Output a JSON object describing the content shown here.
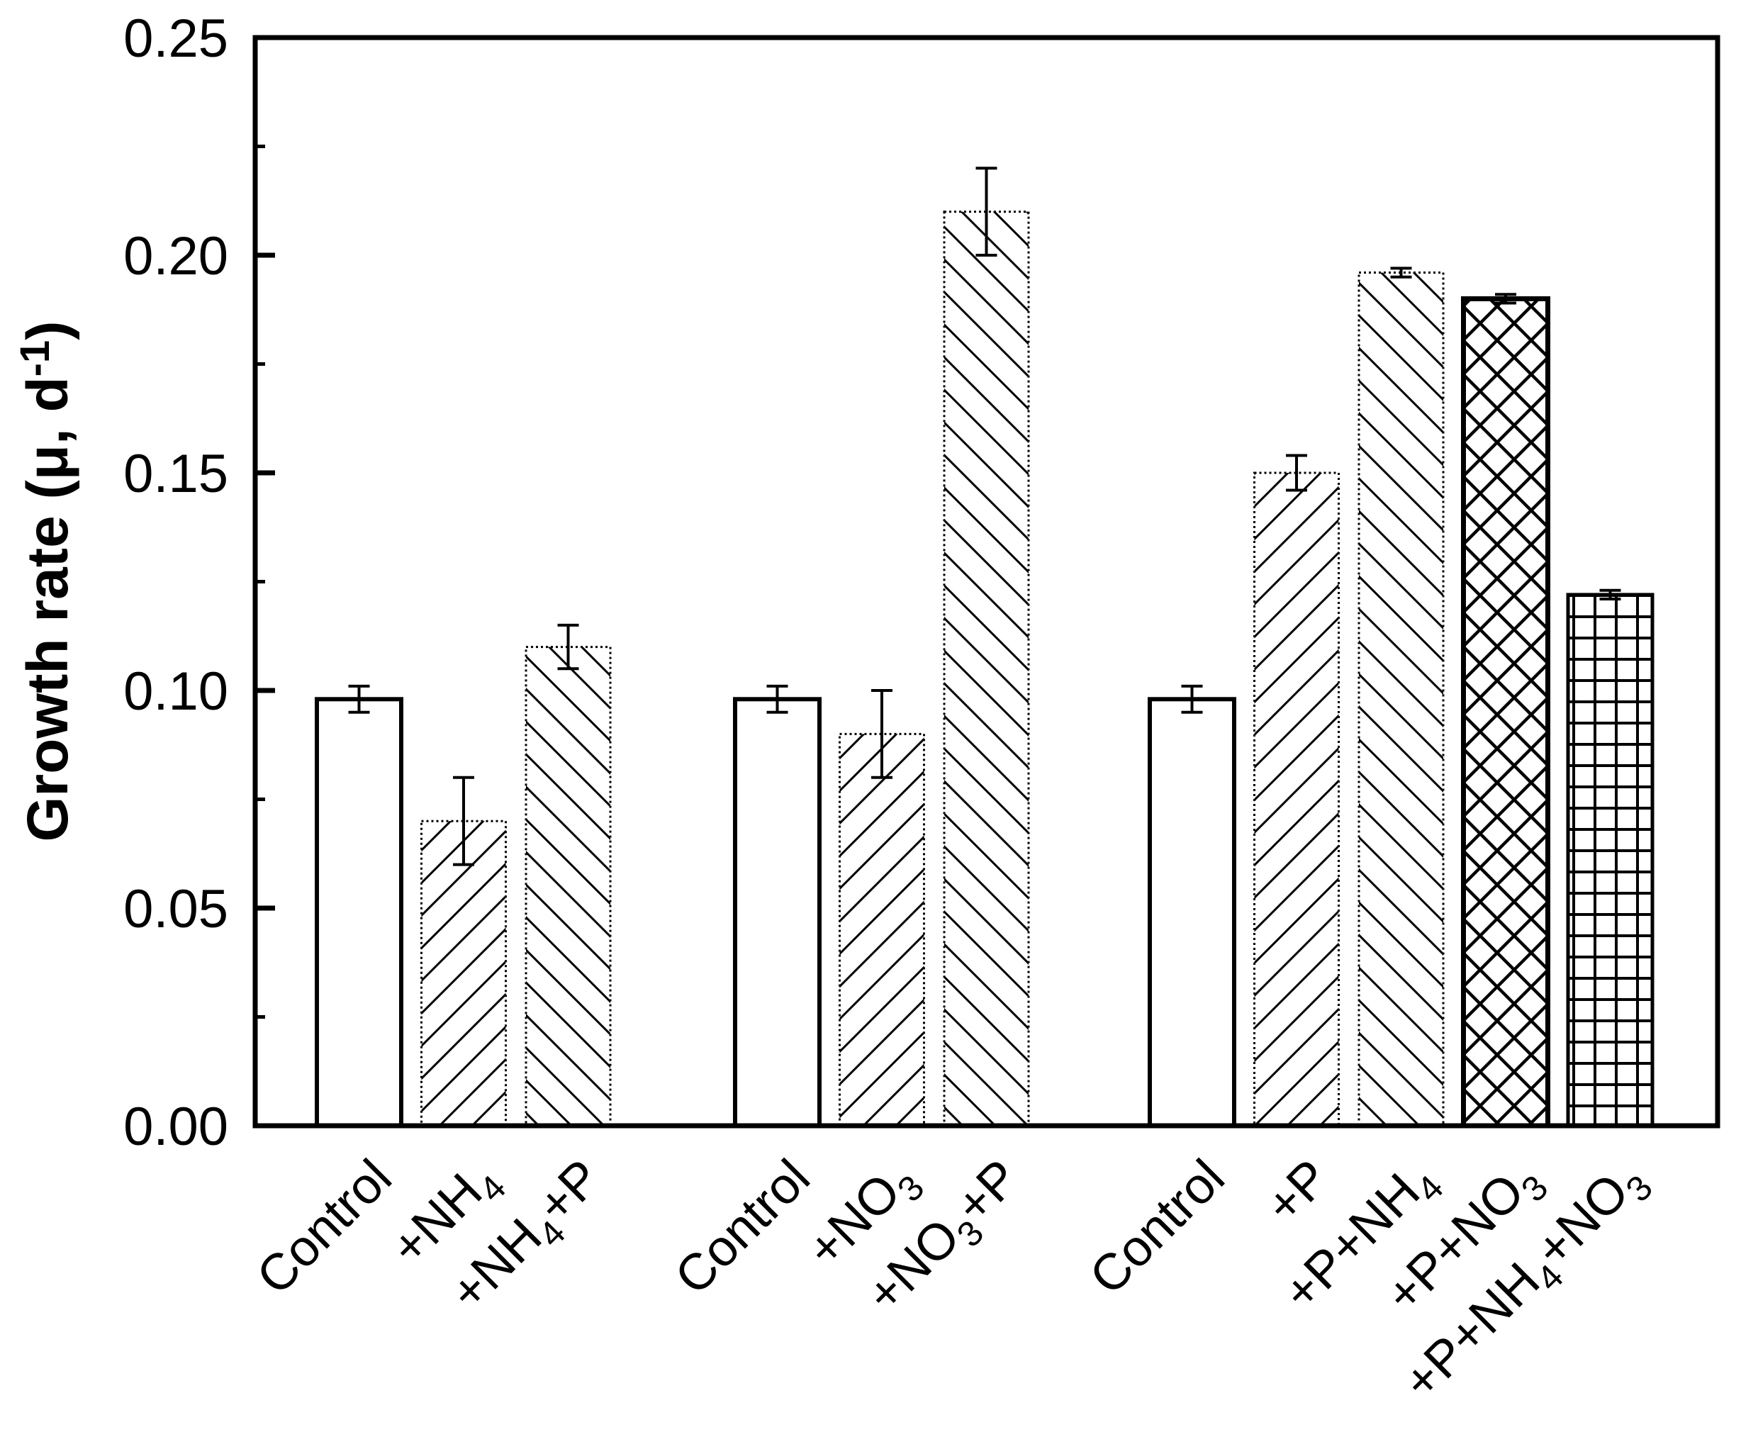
{
  "figure": {
    "background_color": "#ffffff",
    "ink_color": "#000000"
  },
  "y_axis": {
    "title": "Growth rate (μ, d⁻¹)",
    "title_segments": [
      {
        "t": "Growth rate (μ, d"
      },
      {
        "t": "-1",
        "s": 2
      },
      {
        "t": ")"
      }
    ],
    "tick_labels": [
      "0.00",
      "0.05",
      "0.10",
      "0.15",
      "0.20",
      "0.25"
    ],
    "tick_values": [
      0,
      0.05,
      0.1,
      0.15,
      0.2,
      0.25
    ],
    "minor_tick_values": [
      0.025,
      0.075,
      0.125,
      0.175,
      0.225
    ],
    "range": [
      0,
      0.25
    ]
  },
  "chart_data": {
    "type": "bar",
    "title": "",
    "xlabel": "",
    "ylabel": "Growth rate (μ, d⁻¹)",
    "ylim": [
      0,
      0.25
    ],
    "grid": false,
    "legend": "none",
    "error_bars": true,
    "categories": [
      "Control",
      "+NH₄",
      "+NH₄+P",
      "Control",
      "+NO₃",
      "+NO₃+P",
      "Control",
      "+P",
      "+P+NH₄",
      "+P+NO₃",
      "+P+NH₄+NO₃"
    ],
    "values": [
      0.098,
      0.07,
      0.11,
      0.098,
      0.09,
      0.21,
      0.098,
      0.15,
      0.196,
      0.19,
      0.122
    ],
    "errors": [
      0.003,
      0.01,
      0.005,
      0.003,
      0.01,
      0.01,
      0.003,
      0.004,
      0.001,
      0.001,
      0.001
    ],
    "bars": [
      {
        "group": 0,
        "label": "Control",
        "segments": [
          {
            "t": "Control"
          }
        ],
        "value": 0.098,
        "error": 0.003,
        "pattern": "solid-white"
      },
      {
        "group": 0,
        "label": "+NH₄",
        "segments": [
          {
            "t": "+NH"
          },
          {
            "t": "4",
            "s": 1
          }
        ],
        "value": 0.07,
        "error": 0.01,
        "pattern": "hatch-up"
      },
      {
        "group": 0,
        "label": "+NH₄+P",
        "segments": [
          {
            "t": "+NH"
          },
          {
            "t": "4",
            "s": 1
          },
          {
            "t": "+P"
          }
        ],
        "value": 0.11,
        "error": 0.005,
        "pattern": "hatch-down"
      },
      {
        "group": 1,
        "label": "Control",
        "segments": [
          {
            "t": "Control"
          }
        ],
        "value": 0.098,
        "error": 0.003,
        "pattern": "solid-white"
      },
      {
        "group": 1,
        "label": "+NO₃",
        "segments": [
          {
            "t": "+NO"
          },
          {
            "t": "3",
            "s": 1
          }
        ],
        "value": 0.09,
        "error": 0.01,
        "pattern": "hatch-up"
      },
      {
        "group": 1,
        "label": "+NO₃+P",
        "segments": [
          {
            "t": "+NO"
          },
          {
            "t": "3",
            "s": 1
          },
          {
            "t": "+P"
          }
        ],
        "value": 0.21,
        "error": 0.01,
        "pattern": "hatch-down"
      },
      {
        "group": 2,
        "label": "Control",
        "segments": [
          {
            "t": "Control"
          }
        ],
        "value": 0.098,
        "error": 0.003,
        "pattern": "solid-white"
      },
      {
        "group": 2,
        "label": "+P",
        "segments": [
          {
            "t": "+P"
          }
        ],
        "value": 0.15,
        "error": 0.004,
        "pattern": "hatch-up"
      },
      {
        "group": 2,
        "label": "+P+NH₄",
        "segments": [
          {
            "t": "+P+NH"
          },
          {
            "t": "4",
            "s": 1
          }
        ],
        "value": 0.196,
        "error": 0.001,
        "pattern": "hatch-down"
      },
      {
        "group": 2,
        "label": "+P+NO₃",
        "segments": [
          {
            "t": "+P+NO"
          },
          {
            "t": "3",
            "s": 1
          }
        ],
        "value": 0.19,
        "error": 0.001,
        "pattern": "crosshatch"
      },
      {
        "group": 2,
        "label": "+P+NH₄+NO₃",
        "segments": [
          {
            "t": "+P+NH"
          },
          {
            "t": "4",
            "s": 1
          },
          {
            "t": "+NO"
          },
          {
            "t": "3",
            "s": 1
          }
        ],
        "value": 0.122,
        "error": 0.001,
        "pattern": "grid"
      }
    ]
  }
}
